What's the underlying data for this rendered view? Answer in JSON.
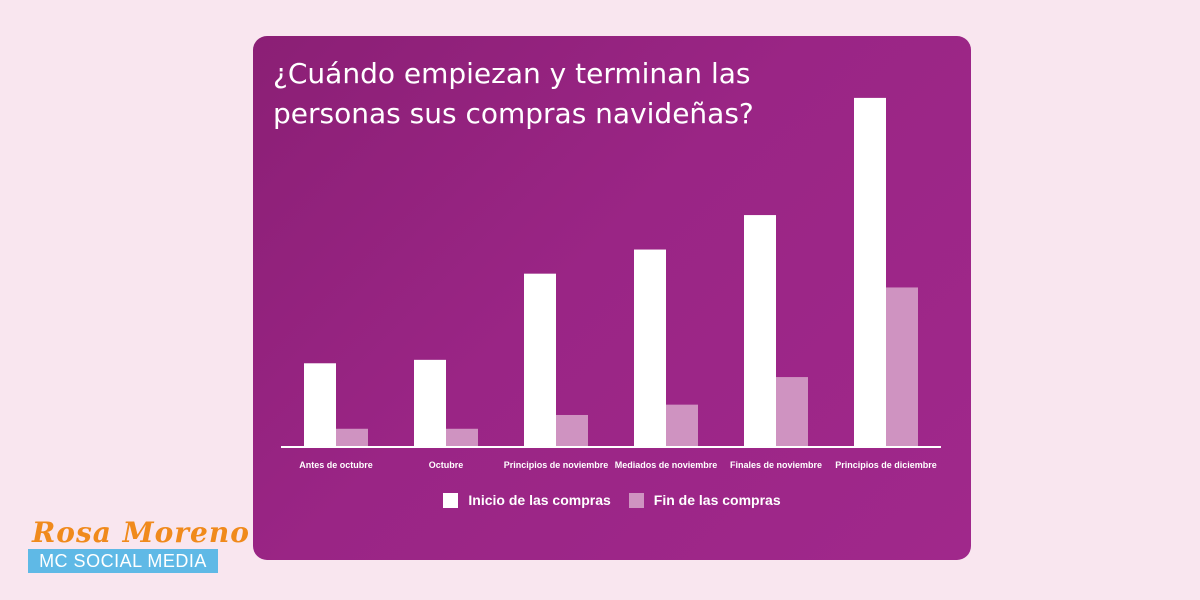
{
  "chart_data": {
    "type": "bar",
    "title": "¿Cuándo empiezan y terminan las personas sus compras navideñas?",
    "categories": [
      "Antes de octubre",
      "Octubre",
      "Principios de noviembre",
      "Mediados de noviembre",
      "Finales de noviembre",
      "Principios de diciembre"
    ],
    "series": [
      {
        "name": "Inicio de las compras",
        "color": "#ffffff",
        "values": [
          24,
          25,
          50,
          57,
          67,
          101
        ]
      },
      {
        "name": "Fin de las compras",
        "color": "#cf93c1",
        "values": [
          5,
          5,
          9,
          12,
          20,
          46
        ]
      }
    ],
    "ylim": [
      0,
      103
    ],
    "grid": false,
    "legend_position": "bottom"
  },
  "brand": {
    "name": "Rosa Moreno",
    "subtitle": "MC SOCIAL MEDIA"
  }
}
